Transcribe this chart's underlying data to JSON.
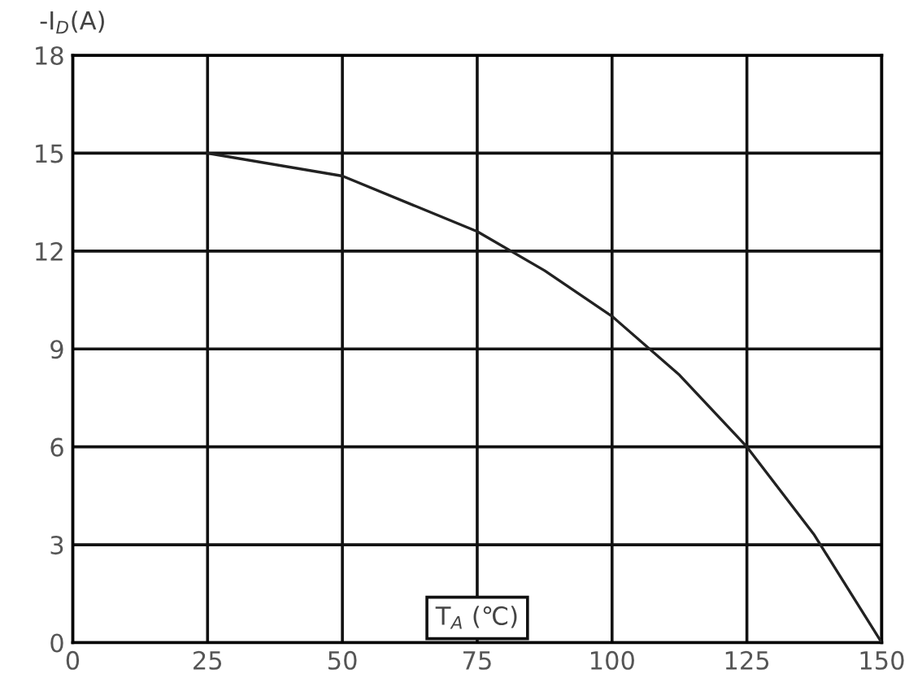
{
  "chart_data": {
    "type": "line",
    "ylabel": "-I$_{D}$(A)",
    "xlabel": "T$_{A}$ (℃)",
    "x": [
      25,
      50,
      75,
      87.5,
      100,
      112.5,
      125,
      137.5,
      150
    ],
    "series": [
      {
        "color": "#222222",
        "values": [
          15,
          14.3,
          12.6,
          11.4,
          10,
          8.2,
          6,
          3.3,
          0
        ]
      }
    ],
    "xlim": [
      0,
      150
    ],
    "xticks": [
      0,
      25,
      50,
      75,
      100,
      125,
      150
    ],
    "ylim": [
      0,
      18
    ],
    "yticks": [
      0,
      3,
      6,
      9,
      12,
      15,
      18
    ],
    "grid": true,
    "marker": "none",
    "line_style": "solid",
    "legend": false
  }
}
